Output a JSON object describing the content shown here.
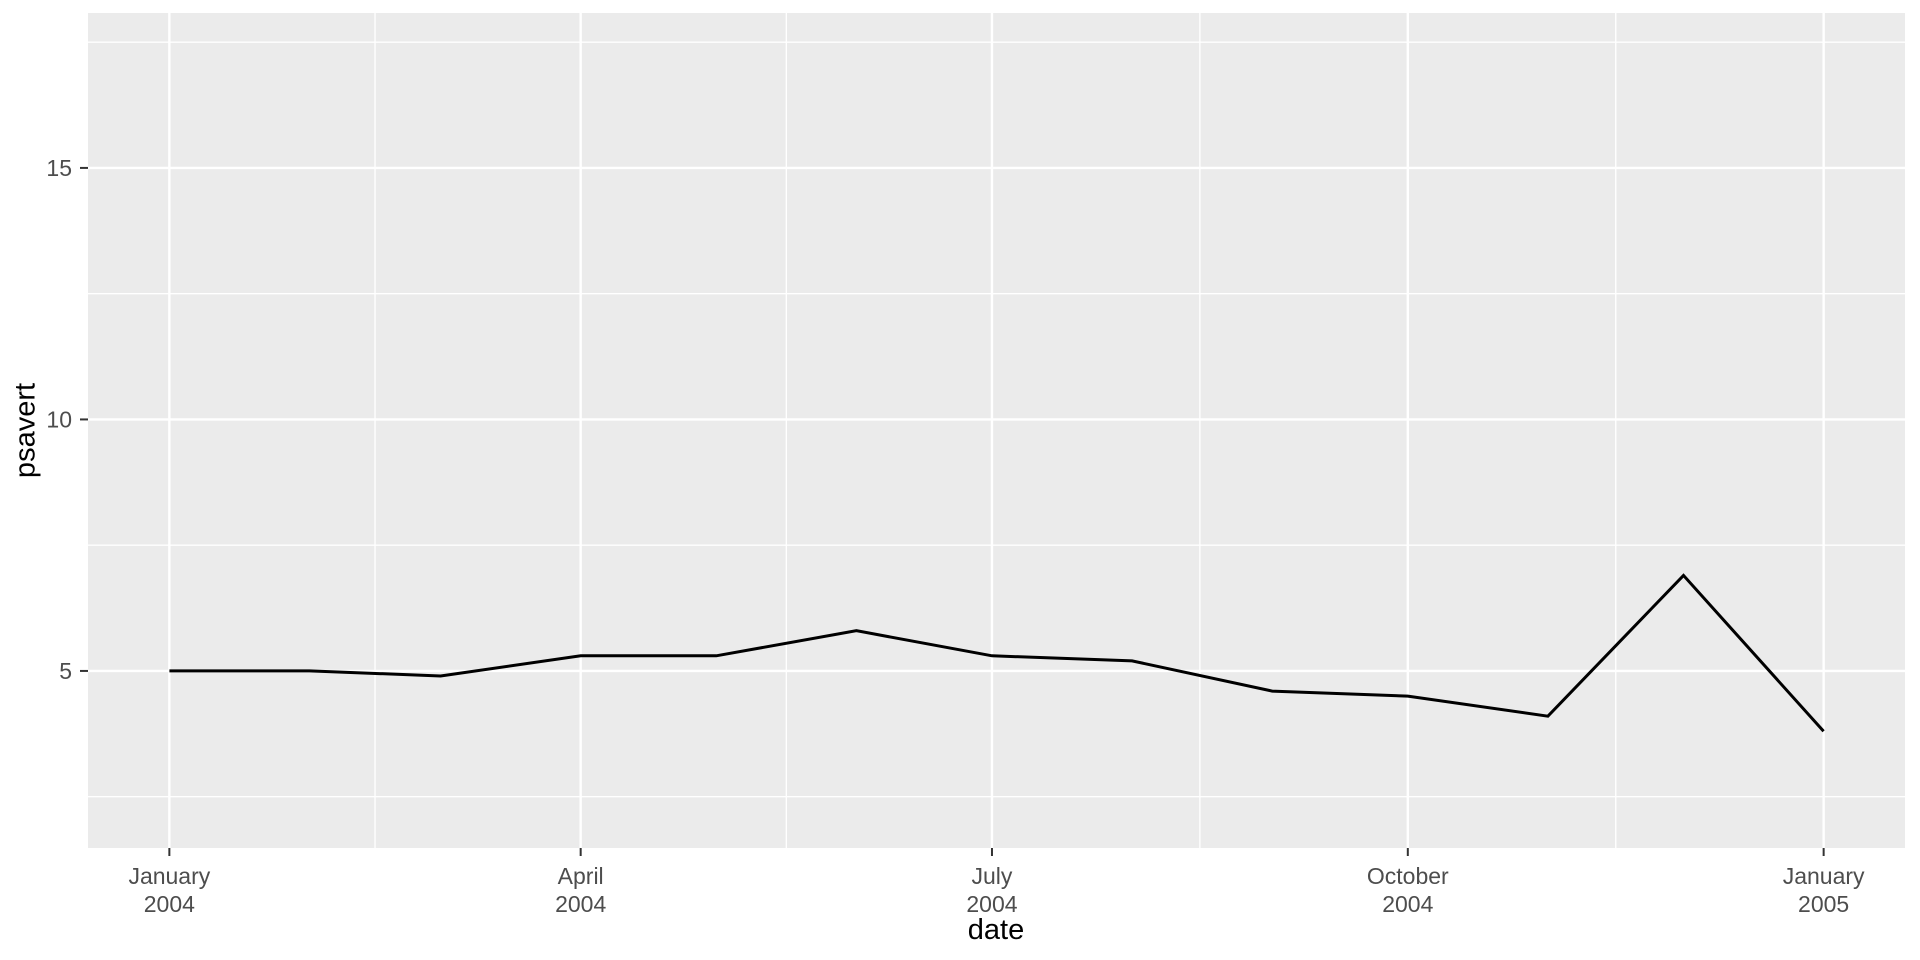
{
  "chart_data": {
    "type": "line",
    "title": "",
    "xlabel": "date",
    "ylabel": "psavert",
    "series": [
      {
        "name": "psavert",
        "x": [
          "2004-01-01",
          "2004-02-01",
          "2004-03-01",
          "2004-04-01",
          "2004-05-01",
          "2004-06-01",
          "2004-07-01",
          "2004-08-01",
          "2004-09-01",
          "2004-10-01",
          "2004-11-01",
          "2004-12-01",
          "2005-01-01"
        ],
        "values": [
          5.0,
          5.0,
          4.9,
          5.3,
          5.3,
          5.8,
          5.3,
          5.2,
          4.6,
          4.5,
          4.1,
          6.9,
          3.8
        ]
      }
    ],
    "x_ticks": [
      {
        "date": "2004-01-01",
        "line1": "January",
        "line2": "2004"
      },
      {
        "date": "2004-04-01",
        "line1": "April",
        "line2": "2004"
      },
      {
        "date": "2004-07-01",
        "line1": "July",
        "line2": "2004"
      },
      {
        "date": "2004-10-01",
        "line1": "October",
        "line2": "2004"
      },
      {
        "date": "2005-01-01",
        "line1": "January",
        "line2": "2005"
      }
    ],
    "y_ticks": [
      {
        "value": 5,
        "label": "5"
      },
      {
        "value": 10,
        "label": "10"
      },
      {
        "value": 15,
        "label": "15"
      }
    ],
    "y_minor_gridlines": [
      2.5,
      7.5,
      12.5,
      17.5
    ],
    "xlim": [
      "2003-12-14",
      "2005-01-19"
    ],
    "ylim": [
      1.48,
      18.08
    ],
    "grid": "on",
    "legend": "none",
    "colors": {
      "panel_bg": "#EBEBEB",
      "grid": "#FFFFFF",
      "line": "#000000",
      "tick_mark": "#333333",
      "tick_label": "#4D4D4D",
      "axis_title": "#000000",
      "figure_bg": "#FFFFFF"
    }
  }
}
